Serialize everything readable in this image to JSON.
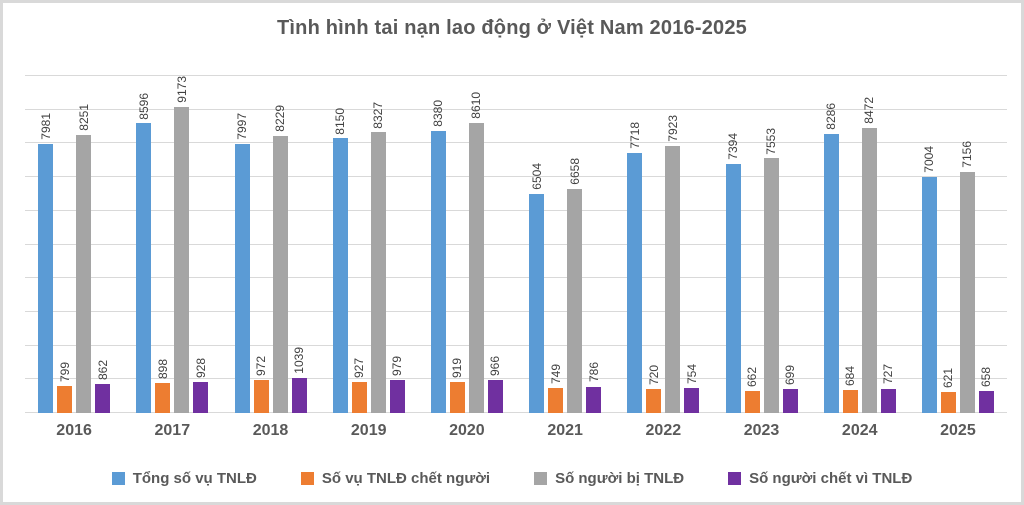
{
  "chart_data": {
    "type": "bar",
    "title": "Tình hình tai nạn lao động ở Việt Nam 2016-2025",
    "categories": [
      "2016",
      "2017",
      "2018",
      "2019",
      "2020",
      "2021",
      "2022",
      "2023",
      "2024",
      "2025"
    ],
    "series": [
      {
        "name": "Tổng số vụ TNLĐ",
        "color": "#5B9BD5",
        "values": [
          7981,
          8596,
          7997,
          8150,
          8380,
          6504,
          7718,
          7394,
          8286,
          7004
        ]
      },
      {
        "name": "Số vụ TNLĐ chết người",
        "color": "#ED7D31",
        "values": [
          799,
          898,
          972,
          927,
          919,
          749,
          720,
          662,
          684,
          621
        ]
      },
      {
        "name": "Số người bị TNLĐ",
        "color": "#A5A5A5",
        "values": [
          8251,
          9173,
          8229,
          8327,
          8610,
          6658,
          7923,
          7553,
          8472,
          7156
        ]
      },
      {
        "name": "Số người chết vì TNLĐ",
        "color": "#7030A0",
        "values": [
          862,
          928,
          1039,
          979,
          966,
          786,
          754,
          699,
          727,
          658
        ]
      }
    ],
    "xlabel": "",
    "ylabel": "",
    "ylim": [
      0,
      10000
    ],
    "gridline_step": 1000,
    "grid": true,
    "legend_position": "bottom",
    "value_labels": "rotated-vertical"
  },
  "styles": {
    "background_color": "#FFFFFF",
    "border_color": "#D9D9D9",
    "gridline_color": "#D9D9D9",
    "title_color": "#595959",
    "axis_text_color": "#595959",
    "value_label_color": "#404040"
  }
}
